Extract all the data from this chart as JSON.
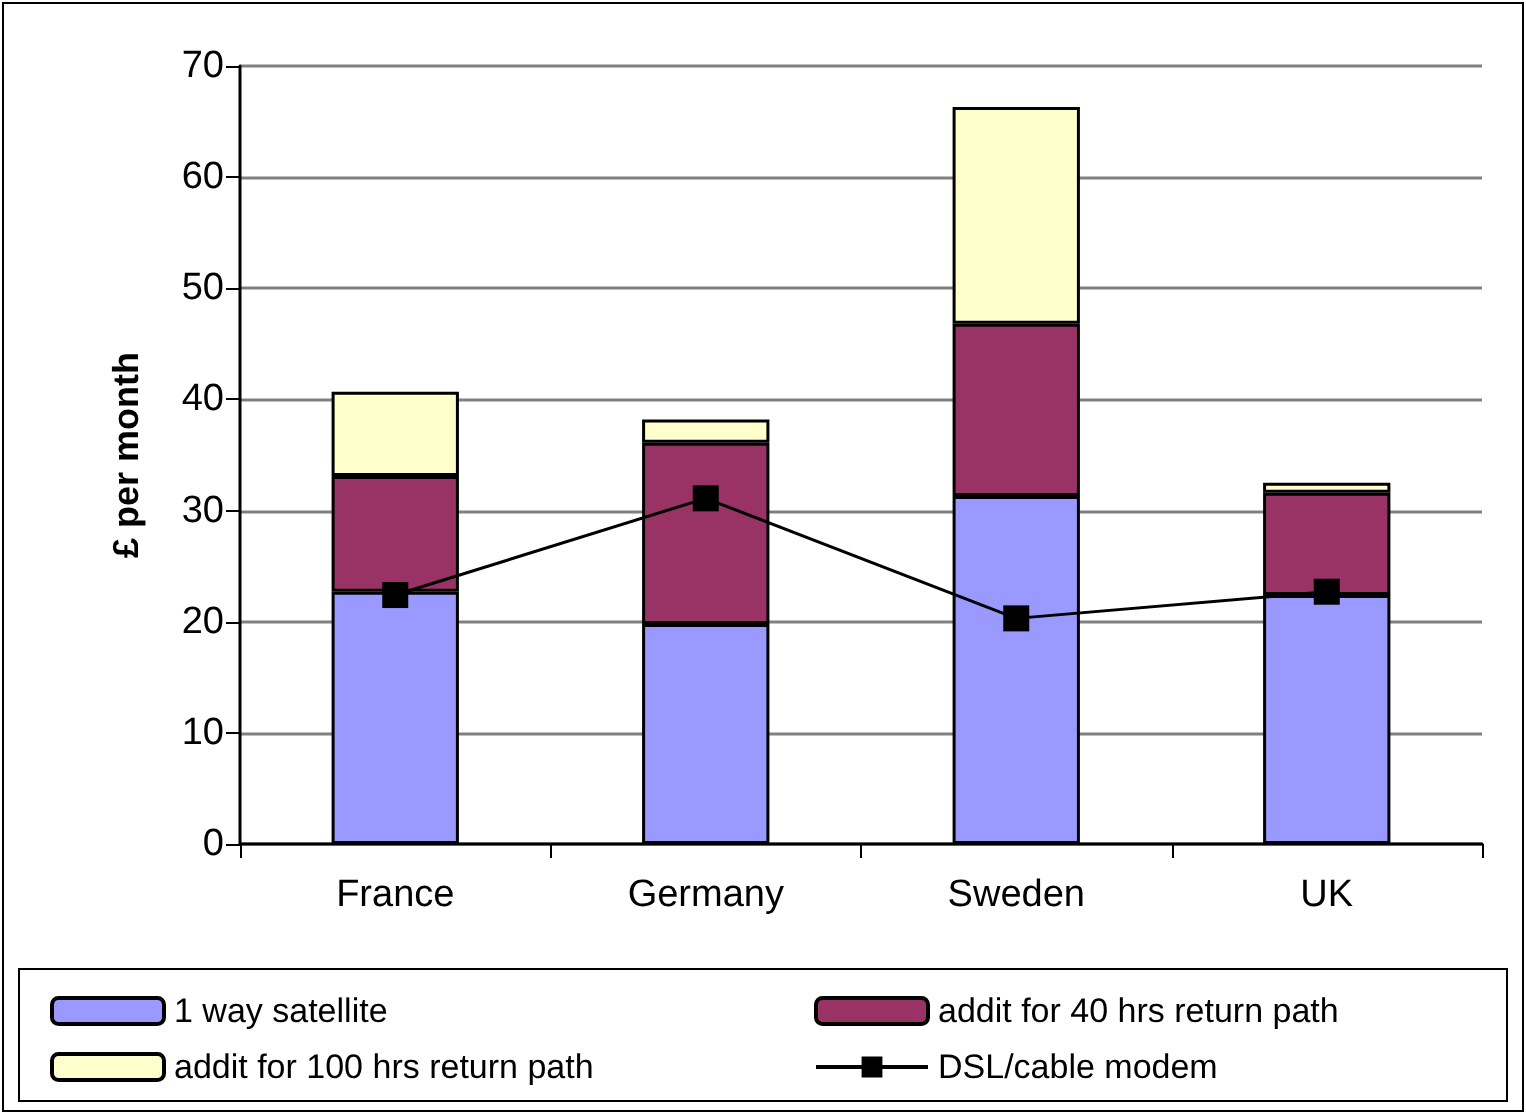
{
  "chart_data": {
    "type": "bar",
    "stacked": true,
    "ylabel": "£ per month",
    "categories": [
      "France",
      "Germany",
      "Sweden",
      "UK"
    ],
    "ylim": [
      0,
      70
    ],
    "yticks": [
      0,
      10,
      20,
      30,
      40,
      50,
      60,
      70
    ],
    "grid": "y",
    "legend": "bottom",
    "series": [
      {
        "name": "1 way satellite",
        "color": "#9999ff",
        "values": [
          22.7,
          19.8,
          31.3,
          22.4
        ]
      },
      {
        "name": "addit for 40 hrs return path",
        "color": "#993366",
        "values": [
          10.4,
          16.3,
          15.5,
          9.2
        ]
      },
      {
        "name": "addit for 100 hrs return path",
        "color": "#ffffcc",
        "values": [
          7.6,
          2.1,
          19.5,
          0.9
        ]
      },
      {
        "name": "DSL/cable modem",
        "type": "line",
        "color": "#000000",
        "marker": "square",
        "line_style": "solid",
        "values": [
          22.4,
          31.1,
          20.3,
          22.7
        ]
      }
    ]
  }
}
